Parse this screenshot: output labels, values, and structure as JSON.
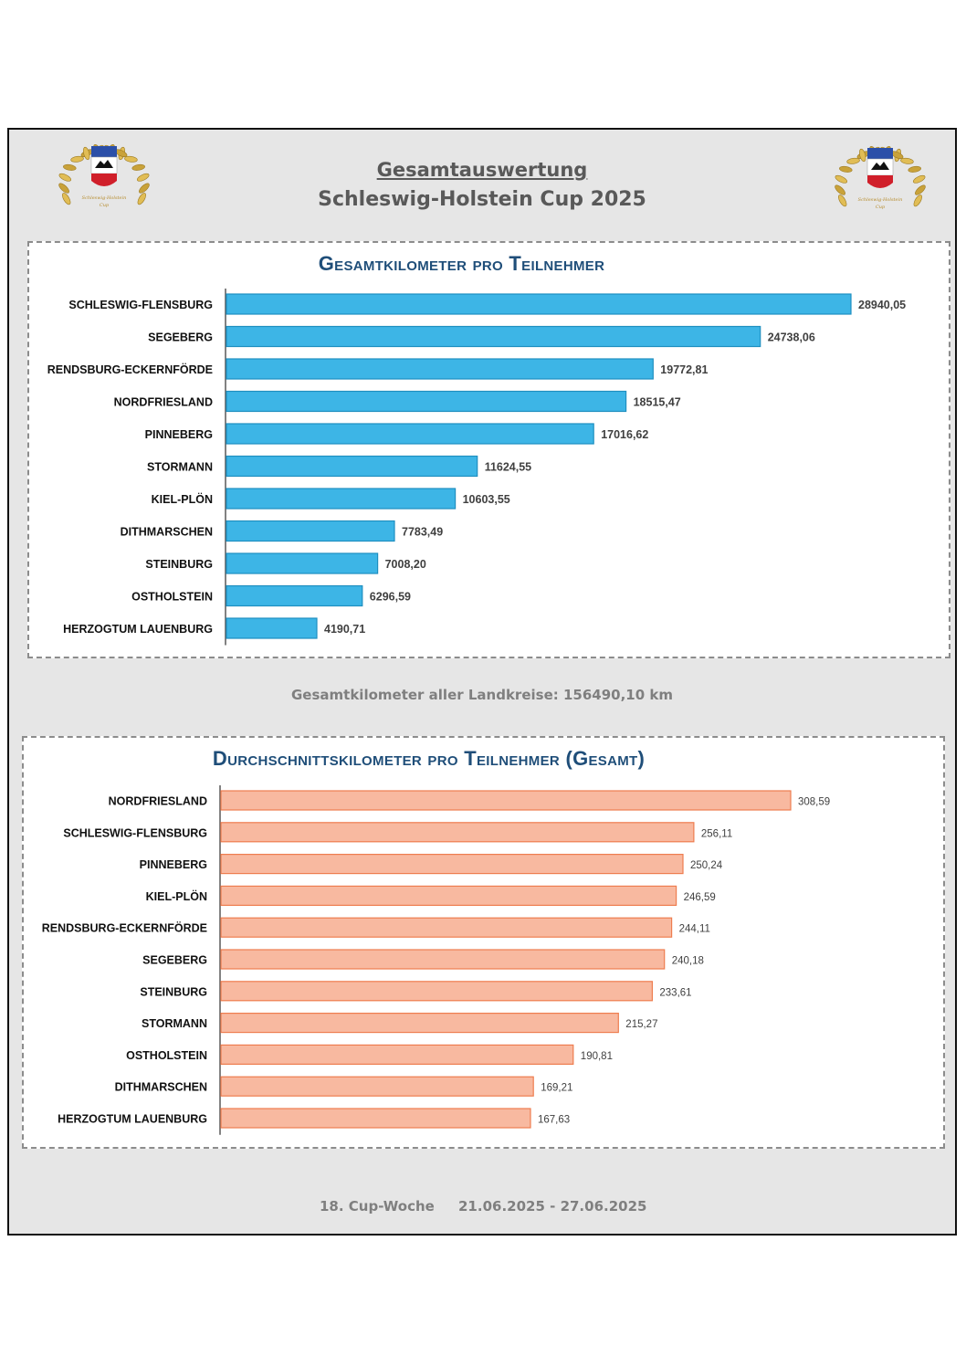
{
  "header": {
    "title_line1": "Gesamtauswertung",
    "title_line2": "Schleswig-Holstein Cup 2025"
  },
  "logo": {
    "icon": "laurel-wreath-coat-of-arms-icon",
    "text_line1": "Schleswig-Holstein",
    "text_line2": "Cup"
  },
  "colors": {
    "chart1_bar": "#3db5e6",
    "chart1_bar_border": "#1f8fc0",
    "chart2_bar": "#f8b9a0",
    "chart2_bar_border": "#ee7d4f",
    "title_color": "#1f4e79"
  },
  "summary_text": "Gesamtkilometer aller Landkreise: 156490,10 km",
  "footer": {
    "week": "18. Cup-Woche",
    "dates": "21.06.2025 - 27.06.2025"
  },
  "chart_data": [
    {
      "type": "bar",
      "orientation": "horizontal",
      "title": "Gesamtkilometer pro Teilnehmer",
      "categories": [
        "SCHLESWIG-FLENSBURG",
        "SEGEBERG",
        "RENDSBURG-ECKERNFÖRDE",
        "NORDFRIESLAND",
        "PINNEBERG",
        "STORMANN",
        "KIEL-PLÖN",
        "DITHMARSCHEN",
        "STEINBURG",
        "OSTHOLSTEIN",
        "HERZOGTUM LAUENBURG"
      ],
      "values": [
        28940.05,
        24738.06,
        19772.81,
        18515.47,
        17016.62,
        11624.55,
        10603.55,
        7783.49,
        7008.2,
        6296.59,
        4190.71
      ],
      "labels": [
        "28940,05",
        "24738,06",
        "19772,81",
        "18515,47",
        "17016,62",
        "11624,55",
        "10603,55",
        "7783,49",
        "7008,20",
        "6296,59",
        "4190,71"
      ],
      "grid": false
    },
    {
      "type": "bar",
      "orientation": "horizontal",
      "title": "Durchschnittskilometer pro Teilnehmer (Gesamt)",
      "categories": [
        "NORDFRIESLAND",
        "SCHLESWIG-FLENSBURG",
        "PINNEBERG",
        "KIEL-PLÖN",
        "RENDSBURG-ECKERNFÖRDE",
        "SEGEBERG",
        "STEINBURG",
        "STORMANN",
        "OSTHOLSTEIN",
        "DITHMARSCHEN",
        "HERZOGTUM LAUENBURG"
      ],
      "values": [
        308.59,
        256.11,
        250.24,
        246.59,
        244.11,
        240.18,
        233.61,
        215.27,
        190.81,
        169.21,
        167.63
      ],
      "labels": [
        "308,59",
        "256,11",
        "250,24",
        "246,59",
        "244,11",
        "240,18",
        "233,61",
        "215,27",
        "190,81",
        "169,21",
        "167,63"
      ],
      "grid": false
    }
  ]
}
